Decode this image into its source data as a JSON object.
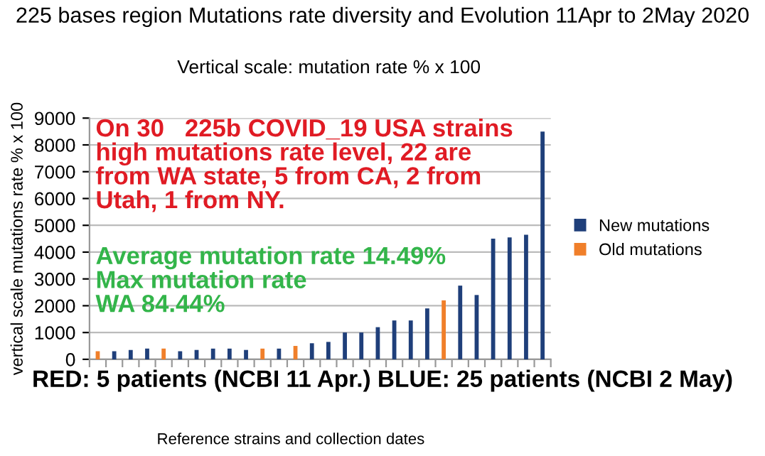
{
  "chart_data": {
    "type": "bar",
    "title": "225 bases region Mutations rate diversity and Evolution 11Apr to 2May 2020",
    "subtitle": "Vertical scale: mutation rate % x 100",
    "xlabel": "Reference strains and collection dates",
    "ylabel": "vertical scale mutations rate % x 100",
    "categories": [
      null,
      null,
      null,
      null,
      null,
      null,
      null,
      null,
      null,
      null,
      null,
      null,
      null,
      null,
      null,
      null,
      null,
      null,
      null,
      null,
      null,
      null,
      null,
      null,
      null,
      null,
      null,
      null
    ],
    "series": [
      {
        "name": "New mutations",
        "color": "#1f3f7a",
        "values": [
          null,
          300,
          350,
          400,
          null,
          300,
          350,
          400,
          400,
          350,
          null,
          400,
          null,
          600,
          650,
          1000,
          1000,
          1200,
          1450,
          1450,
          1900,
          null,
          2750,
          2400,
          4500,
          4550,
          4650,
          8500
        ]
      },
      {
        "name": "Old mutations",
        "color": "#f07f2a",
        "values": [
          300,
          null,
          null,
          null,
          400,
          null,
          null,
          null,
          null,
          null,
          400,
          null,
          500,
          null,
          null,
          null,
          null,
          null,
          null,
          null,
          null,
          2200,
          null,
          null,
          null,
          null,
          null,
          null
        ]
      }
    ],
    "ylim": [
      0,
      9000
    ],
    "yticks": [
      0,
      1000,
      2000,
      3000,
      4000,
      5000,
      6000,
      7000,
      8000,
      9000
    ],
    "grid": "y",
    "legend": "right",
    "annotations": [
      "On 30   225b COVID_19 USA strains\nhigh mutations rate level, 22 are\nfrom WA state, 5 from CA, 2 from\nUtah, 1 from NY.",
      "Average mutation rate 14.49%\nMax mutation rate\nWA 84.44%",
      "RED: 5 patients (NCBI 11 Apr.) BLUE: 25 patients (NCBI 2 May)"
    ]
  }
}
